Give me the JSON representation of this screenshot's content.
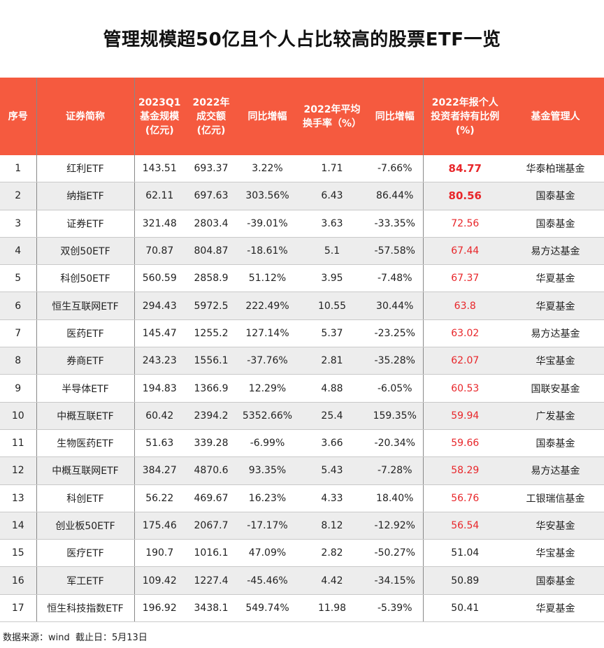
{
  "title": "管理规模超50亿且个人占比较高的股票ETF一览",
  "header": [
    [
      "序号"
    ],
    [
      "证券简称"
    ],
    [
      "2023Q1",
      "基金规模",
      "(亿元)"
    ],
    [
      "2022年",
      "成交额",
      "(亿元)"
    ],
    [
      "同比增幅"
    ],
    [
      "2022年平均",
      "换手率（%）"
    ],
    [
      "同比增幅"
    ],
    [
      "2022年报个人",
      "投资者持有比例",
      "(%)"
    ],
    [
      "基金管理人"
    ]
  ],
  "rows": [
    [
      "1",
      "红利ETF",
      "143.51",
      "693.37",
      "3.22%",
      "1.71",
      "-7.66%",
      "84.77",
      "华泰柏瑞基金"
    ],
    [
      "2",
      "纳指ETF",
      "62.11",
      "697.63",
      "303.56%",
      "6.43",
      "86.44%",
      "80.56",
      "国泰基金"
    ],
    [
      "3",
      "证券ETF",
      "321.48",
      "2803.4",
      "-39.01%",
      "3.63",
      "-33.35%",
      "72.56",
      "国泰基金"
    ],
    [
      "4",
      "双创50ETF",
      "70.87",
      "804.87",
      "-18.61%",
      "5.1",
      "-57.58%",
      "67.44",
      "易方达基金"
    ],
    [
      "5",
      "科创50ETF",
      "560.59",
      "2858.9",
      "51.12%",
      "3.95",
      "-7.48%",
      "67.37",
      "华夏基金"
    ],
    [
      "6",
      "恒生互联网ETF",
      "294.43",
      "5972.5",
      "222.49%",
      "10.55",
      "30.44%",
      "63.8",
      "华夏基金"
    ],
    [
      "7",
      "医药ETF",
      "145.47",
      "1255.2",
      "127.14%",
      "5.37",
      "-23.25%",
      "63.02",
      "易方达基金"
    ],
    [
      "8",
      "券商ETF",
      "243.23",
      "1556.1",
      "-37.76%",
      "2.81",
      "-35.28%",
      "62.07",
      "华宝基金"
    ],
    [
      "9",
      "半导体ETF",
      "194.83",
      "1366.9",
      "12.29%",
      "4.88",
      "-6.05%",
      "60.53",
      "国联安基金"
    ],
    [
      "10",
      "中概互联ETF",
      "60.42",
      "2394.2",
      "5352.66%",
      "25.4",
      "159.35%",
      "59.94",
      "广发基金"
    ],
    [
      "11",
      "生物医药ETF",
      "51.63",
      "339.28",
      "-6.99%",
      "3.66",
      "-20.34%",
      "59.66",
      "国泰基金"
    ],
    [
      "12",
      "中概互联网ETF",
      "384.27",
      "4870.6",
      "93.35%",
      "5.43",
      "-7.28%",
      "58.29",
      "易方达基金"
    ],
    [
      "13",
      "科创ETF",
      "56.22",
      "469.67",
      "16.23%",
      "4.33",
      "18.40%",
      "56.76",
      "工银瑞信基金"
    ],
    [
      "14",
      "创业板50ETF",
      "175.46",
      "2067.7",
      "-17.17%",
      "8.12",
      "-12.92%",
      "56.54",
      "华安基金"
    ],
    [
      "15",
      "医疗ETF",
      "190.7",
      "1016.1",
      "47.09%",
      "2.82",
      "-50.27%",
      "51.04",
      "华宝基金"
    ],
    [
      "16",
      "军工ETF",
      "109.42",
      "1227.4",
      "-45.46%",
      "4.42",
      "-34.15%",
      "50.89",
      "国泰基金"
    ],
    [
      "17",
      "恒生科技指数ETF",
      "196.92",
      "3438.1",
      "549.74%",
      "11.98",
      "-5.39%",
      "50.41",
      "华夏基金"
    ]
  ],
  "footnote": "数据来源：wind  截止日：5月13日"
}
